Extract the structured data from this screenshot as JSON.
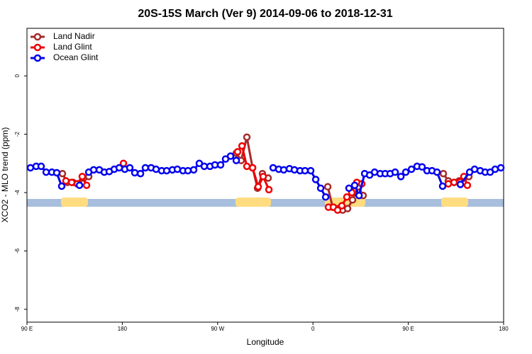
{
  "chart_data": {
    "type": "line",
    "title": "20S-15S March (Ver 9)   2014-09-06 to 2018-12-31",
    "x_label": "Longitude",
    "y_label": "XCO2 - MLO trend (ppm)",
    "xlim": [
      90,
      540
    ],
    "xticks": [
      {
        "value": 90,
        "label": "90 E"
      },
      180,
      {
        "value": 270,
        "label": "90 W"
      },
      {
        "value": 360,
        "label": "0"
      },
      {
        "value": 450,
        "label": "90 E"
      },
      {
        "value": 540,
        "label": "180"
      }
    ],
    "ylim": [
      -8.44,
      1.63
    ],
    "yticks": [
      0,
      -2,
      -4,
      -6,
      -8
    ],
    "legend": "top-left",
    "series": [
      {
        "name": "Land Nadir",
        "color": "#a52a2a",
        "x": [
          123.5,
          128.2,
          133.5,
          138.9,
          143.6,
          148.3,
          null,
          287.6,
          292.2,
          297.6,
          303,
          307.7,
          312.3,
          317.7,
          null,
          374,
          378.6,
          383.3,
          388,
          392.7,
          397.4,
          402.7,
          407.4,
          null,
          483.1,
          487.8,
          493.2,
          497.9,
          502.5,
          507.2
        ],
        "values": [
          -3.35,
          -3.65,
          -3.65,
          -3.7,
          -3.5,
          -3.45,
          null,
          -2.65,
          -2.9,
          -2.1,
          -3.15,
          -3.85,
          -3.35,
          -3.5,
          null,
          -3.8,
          -4.5,
          -4.55,
          -4.6,
          -4.55,
          -4.25,
          -3.8,
          -4.1,
          null,
          -3.35,
          -3.6,
          -3.65,
          -3.6,
          -3.5,
          -3.45
        ]
      },
      {
        "name": "Land Glint",
        "color": "#ee0000",
        "x": [
          126.8,
          132.2,
          137.5,
          142.2,
          146.3,
          null,
          181.1,
          null,
          288.9,
          293,
          297.6,
          303,
          308.3,
          313,
          318.4,
          null,
          374.6,
          379.3,
          383.3,
          387.3,
          392,
          396.7,
          401.4,
          406.1,
          null,
          487.8,
          493.2,
          502.5,
          505.8
        ],
        "values": [
          -3.6,
          -3.65,
          -3.7,
          -3.45,
          -3.75,
          null,
          -3.0,
          null,
          -2.6,
          -2.4,
          -3.1,
          -3.15,
          -3.8,
          -3.45,
          -3.9,
          null,
          -4.5,
          -4.5,
          -4.6,
          -4.45,
          -4.15,
          -4.0,
          -3.65,
          -3.7,
          null,
          -3.7,
          -3.65,
          -3.45,
          -3.75
        ]
      },
      {
        "name": "Ocean Glint",
        "color": "#0000ee",
        "x": [
          93.3,
          98.7,
          103.4,
          108.1,
          113.5,
          118.1,
          122.8,
          null,
          139.6,
          null,
          148.3,
          153,
          158.3,
          163,
          167.7,
          172.4,
          177.1,
          182.4,
          187.1,
          191.8,
          197.2,
          201.8,
          207.2,
          211.9,
          217.2,
          221.9,
          227.3,
          232,
          237.3,
          242,
          247.4,
          252.7,
          257.4,
          262.8,
          267.5,
          272.8,
          277.5,
          282.2,
          287.6,
          null,
          322.4,
          327.7,
          332.4,
          337.8,
          342.5,
          347.8,
          352.5,
          357.9,
          362.6,
          367.3,
          372,
          null,
          394,
          399.4,
          403.5,
          408.8,
          413.5,
          418.2,
          423.5,
          428.2,
          432.9,
          437.6,
          443,
          447.6,
          453,
          458.3,
          463,
          467.7,
          472.4,
          477.1,
          482.4,
          null,
          499.2,
          507.9,
          512.6,
          517.9,
          522.6,
          527.3,
          532,
          537.4
        ],
        "values": [
          -3.15,
          -3.1,
          -3.1,
          -3.3,
          -3.3,
          -3.32,
          -3.78,
          null,
          -3.75,
          null,
          -3.3,
          -3.22,
          -3.22,
          -3.3,
          -3.28,
          -3.2,
          -3.15,
          -3.2,
          -3.15,
          -3.32,
          -3.35,
          -3.15,
          -3.15,
          -3.2,
          -3.25,
          -3.25,
          -3.22,
          -3.2,
          -3.25,
          -3.25,
          -3.22,
          -3.0,
          -3.1,
          -3.1,
          -3.05,
          -3.05,
          -2.85,
          -2.75,
          -2.9,
          null,
          -3.15,
          -3.2,
          -3.22,
          -3.18,
          -3.22,
          -3.25,
          -3.25,
          -3.25,
          -3.55,
          -3.85,
          -4.15,
          null,
          -3.85,
          -3.75,
          -4.1,
          -3.35,
          -3.4,
          -3.3,
          -3.35,
          -3.35,
          -3.35,
          -3.3,
          -3.45,
          -3.3,
          -3.2,
          -3.1,
          -3.12,
          -3.25,
          -3.25,
          -3.3,
          -3.78,
          null,
          -3.72,
          -3.3,
          -3.2,
          -3.25,
          -3.3,
          -3.3,
          -3.2,
          -3.15
        ]
      }
    ]
  }
}
